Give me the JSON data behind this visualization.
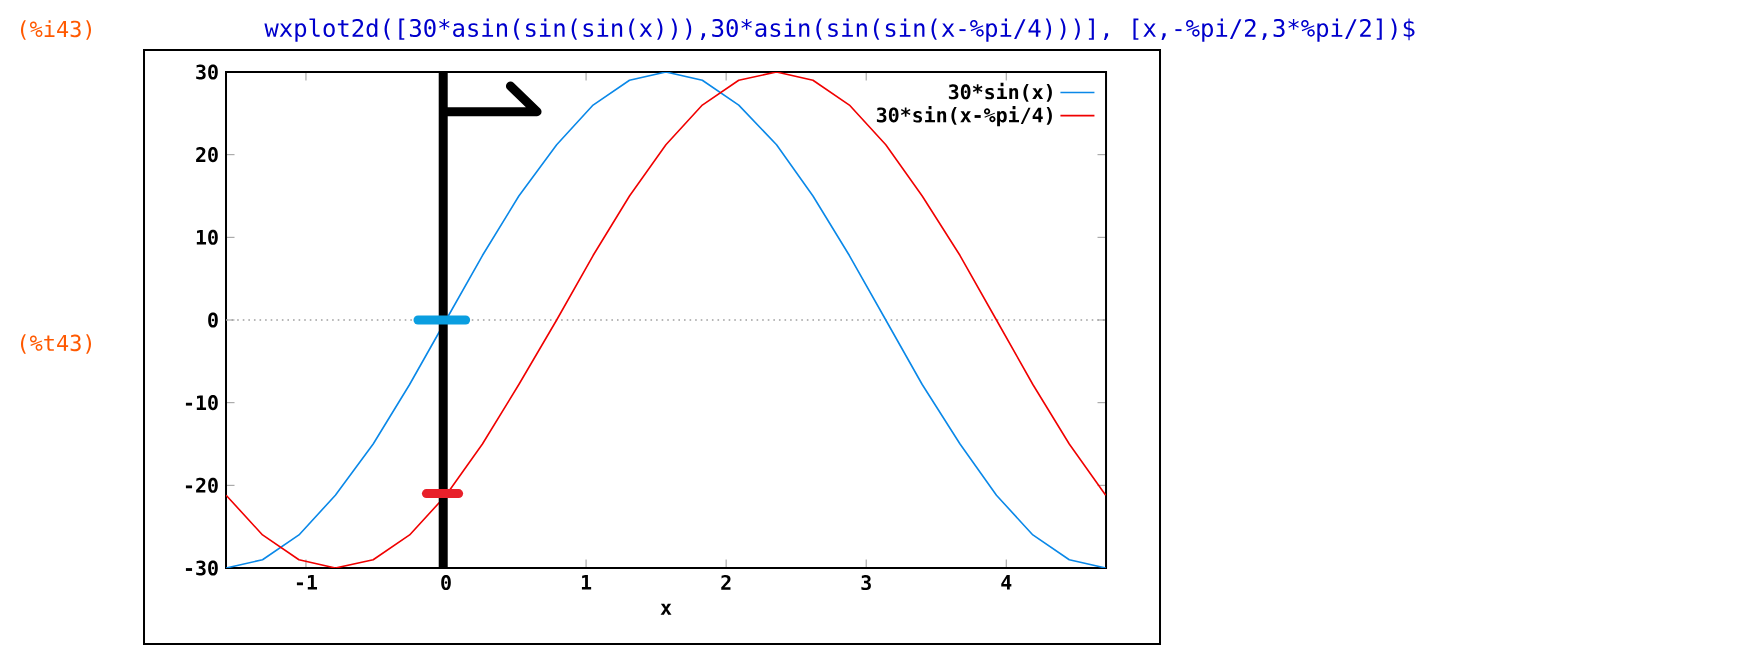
{
  "chart_data": {
    "type": "line",
    "title": "wxplot2d([30*asin(sin(sin(x))),30*asin(sin(sin(x-%pi/4)))], [x,-%pi/2,3*%pi/2])$",
    "annotations": [
      "(%i43)",
      "(%t43)"
    ],
    "xlabel": "x",
    "xlim": [
      -1.5708,
      4.7124
    ],
    "xticks": [
      -1,
      0,
      1,
      2,
      3,
      4
    ],
    "ylim": [
      -30,
      30
    ],
    "yticks": [
      -30,
      -20,
      -10,
      0,
      10,
      20,
      30
    ],
    "legend": "top right",
    "grid": false,
    "marker": "none",
    "line_style": "solid",
    "ref_lines": [
      {
        "axis": "y",
        "value": 0,
        "color": "#a0a0a0",
        "line_style": "dotted"
      }
    ],
    "series": [
      {
        "name": "30*sin(x)",
        "color": "#0a88e8",
        "x": [
          -1.57,
          -1.31,
          -1.05,
          -0.79,
          -0.52,
          -0.26,
          0,
          0.26,
          0.52,
          0.79,
          1.05,
          1.31,
          1.57,
          1.83,
          2.09,
          2.36,
          2.62,
          2.88,
          3.14,
          3.4,
          3.67,
          3.93,
          4.19,
          4.45,
          4.71
        ],
        "values": [
          -30,
          -29,
          -26,
          -21.2,
          -15,
          -7.8,
          0,
          7.8,
          15,
          21.2,
          26,
          29,
          30,
          29,
          26,
          21.2,
          15,
          7.8,
          0,
          -7.8,
          -15,
          -21.2,
          -26,
          -29,
          -30
        ]
      },
      {
        "name": "30*sin(x-%pi/4)",
        "color": "#f00000",
        "x": [
          -1.57,
          -1.31,
          -1.05,
          -0.79,
          -0.52,
          -0.26,
          0,
          0.26,
          0.52,
          0.79,
          1.05,
          1.31,
          1.57,
          1.83,
          2.09,
          2.36,
          2.62,
          2.88,
          3.14,
          3.4,
          3.67,
          3.93,
          4.19,
          4.45,
          4.71
        ],
        "values": [
          -21.2,
          -26,
          -29,
          -30,
          -29,
          -26,
          -21.2,
          -15,
          -7.8,
          0,
          7.8,
          15,
          21.2,
          26,
          29,
          30,
          29,
          26,
          21.2,
          15,
          7.8,
          0,
          -7.8,
          -15,
          -21.2
        ]
      },
      {
        "color": "#000000",
        "x": [
          -0.02,
          -0.02,
          -0.02,
          0.65,
          0.46
        ],
        "values": [
          -30,
          30,
          25.2,
          25.2,
          28.3
        ]
      },
      {
        "color": "#0a9ee0",
        "x": [
          -0.2,
          0.14
        ],
        "values": [
          0,
          0
        ]
      },
      {
        "color": "#e8202a",
        "x": [
          -0.14,
          0.09
        ],
        "values": [
          -21,
          -21
        ]
      }
    ]
  }
}
